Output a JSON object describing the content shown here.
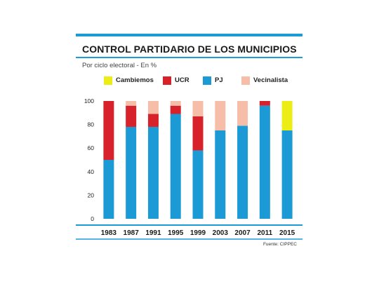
{
  "header": {
    "title": "CONTROL PARTIDARIO DE LOS MUNICIPIOS",
    "subtitle": "Por ciclo electoral - En %"
  },
  "source": "Fuente: CIPPEC",
  "chart_data": {
    "type": "bar",
    "stacked": true,
    "title": "CONTROL PARTIDARIO DE LOS MUNICIPIOS",
    "subtitle": "Por ciclo electoral - En %",
    "xlabel": "",
    "ylabel": "",
    "ylim": [
      0,
      100
    ],
    "yticks": [
      0,
      20,
      40,
      60,
      80,
      100
    ],
    "categories": [
      "1983",
      "1987",
      "1991",
      "1995",
      "1999",
      "2003",
      "2007",
      "2011",
      "2015"
    ],
    "legend_position": "top",
    "grid": false,
    "series": [
      {
        "name": "PJ",
        "color": "#1b9ad6",
        "values": [
          50,
          78,
          78,
          89,
          58,
          75,
          79,
          96,
          75
        ]
      },
      {
        "name": "UCR",
        "color": "#d7212b",
        "values": [
          50,
          18,
          11,
          7,
          29,
          0,
          0,
          4,
          0
        ]
      },
      {
        "name": "Vecinalista",
        "color": "#f6bda9",
        "values": [
          0,
          4,
          11,
          4,
          13,
          25,
          21,
          0,
          0
        ]
      },
      {
        "name": "Cambiemos",
        "color": "#eded16",
        "values": [
          0,
          0,
          0,
          0,
          0,
          0,
          0,
          0,
          25
        ]
      }
    ],
    "legend_order": [
      "Cambiemos",
      "UCR",
      "PJ",
      "Vecinalista"
    ]
  }
}
